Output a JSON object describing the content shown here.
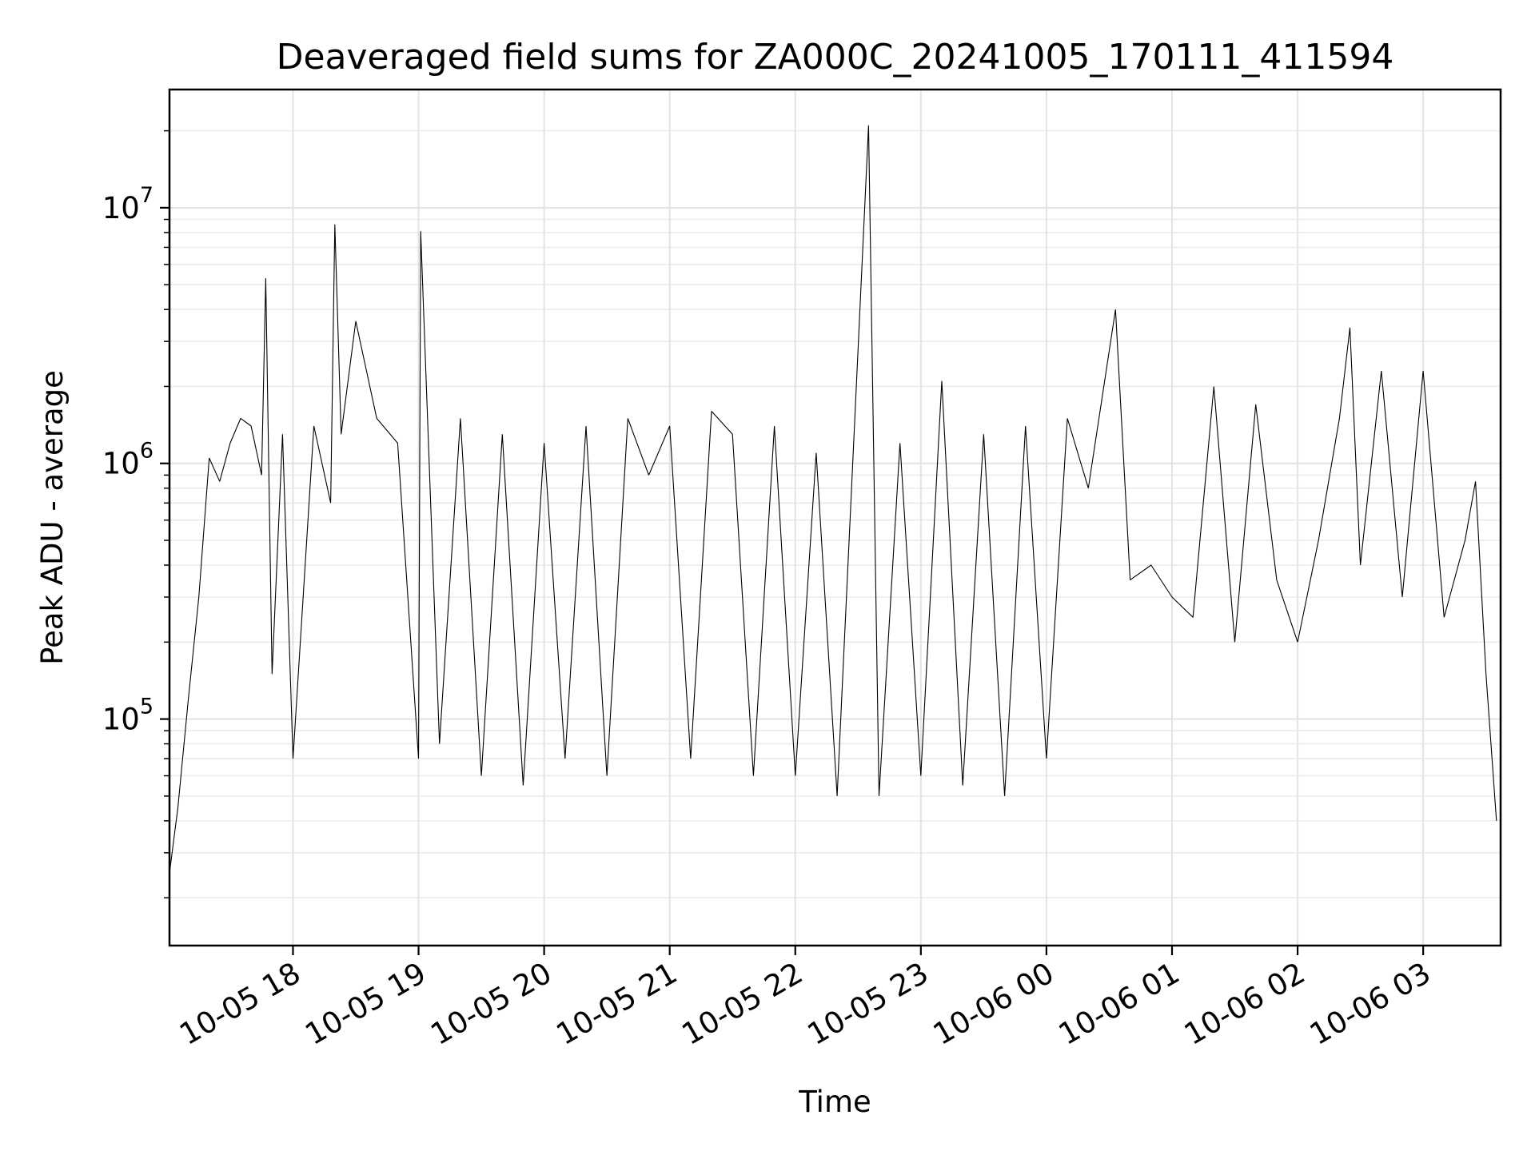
{
  "chart_data": {
    "type": "line",
    "title": "Deaveraged field sums for ZA000C_20241005_170111_411594",
    "xlabel": "Time",
    "ylabel": "Peak ADU - average",
    "xlim": [
      "2024-10-05 17:01",
      "2024-10-06 03:37"
    ],
    "ylim": [
      13000,
      29000000
    ],
    "yscale": "log",
    "grid": true,
    "grid_minor_y": true,
    "line_color": "#000000",
    "x_ticks": [
      "10-05 18",
      "10-05 19",
      "10-05 20",
      "10-05 21",
      "10-05 22",
      "10-05 23",
      "10-06 00",
      "10-06 01",
      "10-06 02",
      "10-06 03"
    ],
    "y_ticks": [
      {
        "value": 100000,
        "base": "10",
        "exp": "5"
      },
      {
        "value": 1000000,
        "base": "10",
        "exp": "6"
      },
      {
        "value": 10000000,
        "base": "10",
        "exp": "7"
      }
    ],
    "series": [
      {
        "x": [
          "2024-10-05 17:01",
          "2024-10-05 17:05",
          "2024-10-05 17:10",
          "2024-10-05 17:15",
          "2024-10-05 17:20",
          "2024-10-05 17:25",
          "2024-10-05 17:30",
          "2024-10-05 17:35",
          "2024-10-05 17:40",
          "2024-10-05 17:45",
          "2024-10-05 17:47",
          "2024-10-05 17:50",
          "2024-10-05 17:55",
          "2024-10-05 18:00",
          "2024-10-05 18:10",
          "2024-10-05 18:18",
          "2024-10-05 18:20",
          "2024-10-05 18:23",
          "2024-10-05 18:30",
          "2024-10-05 18:40",
          "2024-10-05 18:50",
          "2024-10-05 19:00",
          "2024-10-05 19:01",
          "2024-10-05 19:10",
          "2024-10-05 19:20",
          "2024-10-05 19:30",
          "2024-10-05 19:40",
          "2024-10-05 19:50",
          "2024-10-05 20:00",
          "2024-10-05 20:10",
          "2024-10-05 20:20",
          "2024-10-05 20:30",
          "2024-10-05 20:40",
          "2024-10-05 20:50",
          "2024-10-05 21:00",
          "2024-10-05 21:10",
          "2024-10-05 21:20",
          "2024-10-05 21:30",
          "2024-10-05 21:40",
          "2024-10-05 21:50",
          "2024-10-05 22:00",
          "2024-10-05 22:10",
          "2024-10-05 22:20",
          "2024-10-05 22:35",
          "2024-10-05 22:40",
          "2024-10-05 22:50",
          "2024-10-05 23:00",
          "2024-10-05 23:10",
          "2024-10-05 23:20",
          "2024-10-05 23:30",
          "2024-10-05 23:40",
          "2024-10-05 23:50",
          "2024-10-06 00:00",
          "2024-10-06 00:10",
          "2024-10-06 00:20",
          "2024-10-06 00:33",
          "2024-10-06 00:40",
          "2024-10-06 00:50",
          "2024-10-06 01:00",
          "2024-10-06 01:10",
          "2024-10-06 01:20",
          "2024-10-06 01:30",
          "2024-10-06 01:40",
          "2024-10-06 01:50",
          "2024-10-06 02:00",
          "2024-10-06 02:10",
          "2024-10-06 02:20",
          "2024-10-06 02:25",
          "2024-10-06 02:30",
          "2024-10-06 02:40",
          "2024-10-06 02:50",
          "2024-10-06 03:00",
          "2024-10-06 03:10",
          "2024-10-06 03:20",
          "2024-10-06 03:25",
          "2024-10-06 03:30",
          "2024-10-06 03:35"
        ],
        "y": [
          25000,
          45000,
          120000,
          300000,
          1050000,
          850000,
          1200000,
          1500000,
          1400000,
          900000,
          5300000,
          150000,
          1300000,
          70000,
          1400000,
          700000,
          8600000,
          1300000,
          3600000,
          1500000,
          1200000,
          70000,
          8100000,
          80000,
          1500000,
          60000,
          1300000,
          55000,
          1200000,
          70000,
          1400000,
          60000,
          1500000,
          900000,
          1400000,
          70000,
          1600000,
          1300000,
          60000,
          1400000,
          60000,
          1100000,
          50000,
          21000000,
          50000,
          1200000,
          60000,
          2100000,
          55000,
          1300000,
          50000,
          1400000,
          70000,
          1500000,
          800000,
          4000000,
          350000,
          400000,
          300000,
          250000,
          2000000,
          200000,
          1700000,
          350000,
          200000,
          500000,
          1500000,
          3400000,
          400000,
          2300000,
          300000,
          2300000,
          250000,
          500000,
          850000,
          150000,
          40000
        ]
      }
    ]
  }
}
